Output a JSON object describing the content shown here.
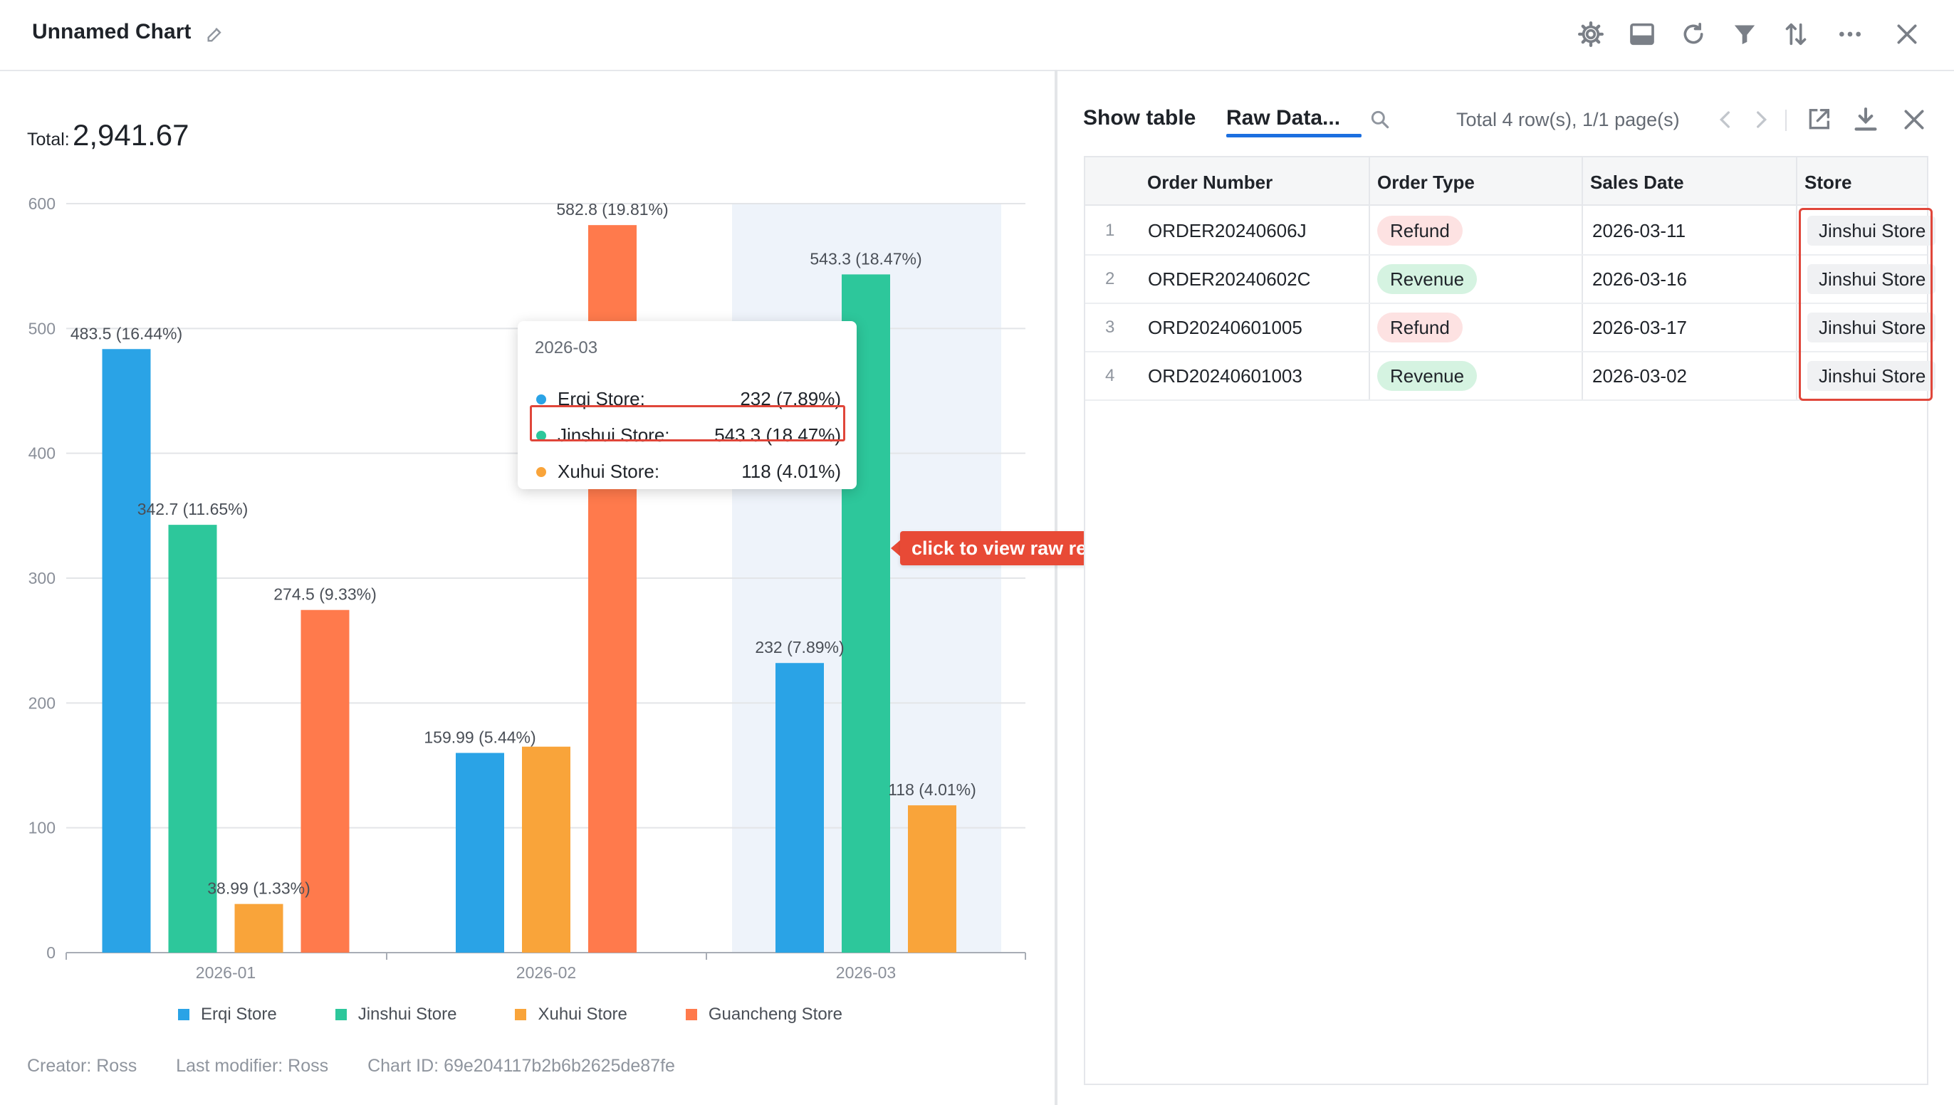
{
  "header": {
    "title": "Unnamed Chart",
    "icons": [
      "settings-icon",
      "display-icon",
      "refresh-icon",
      "filter-icon",
      "sort-icon",
      "more-icon",
      "close-icon"
    ]
  },
  "summary": {
    "total_label": "Total:",
    "total_value": "2,941.67"
  },
  "colors": {
    "erqi": "#2aa3e6",
    "jinshui": "#2dc79b",
    "xuhui": "#f9a43a",
    "guancheng": "#ff7a4c",
    "highlight_band": "#eef3fa",
    "annotation_red": "#e0463a"
  },
  "chart_data": {
    "type": "bar",
    "categories": [
      "2026-01",
      "2026-02",
      "2026-03"
    ],
    "series": [
      {
        "name": "Erqi Store",
        "values": [
          483.5,
          159.99,
          232
        ],
        "labels": [
          "483.5 (16.44%)",
          "159.99 (5.44%)",
          "232 (7.89%)"
        ]
      },
      {
        "name": "Jinshui Store",
        "values": [
          342.7,
          null,
          543.3
        ],
        "labels": [
          "342.7 (11.65%)",
          null,
          "543.3 (18.47%)"
        ]
      },
      {
        "name": "Xuhui Store",
        "values": [
          38.99,
          165,
          118
        ],
        "labels": [
          "38.99 (1.33%)",
          null,
          "118 (4.01%)"
        ]
      },
      {
        "name": "Guancheng Store",
        "values": [
          274.5,
          582.8,
          null
        ],
        "labels": [
          "274.5 (9.33%)",
          "582.8 (19.81%)",
          null
        ]
      }
    ],
    "yticks": [
      "0",
      "100",
      "200",
      "300",
      "400",
      "500",
      "600"
    ],
    "ylim": [
      0,
      600
    ],
    "grid": true,
    "legend_position": "bottom",
    "highlighted_category": "2026-03"
  },
  "tooltip": {
    "title": "2026-03",
    "rows": [
      {
        "name": "Erqi Store:",
        "value": "232 (7.89%)"
      },
      {
        "name": "Jinshui Store:",
        "value": "543.3 (18.47%)"
      },
      {
        "name": "Xuhui Store:",
        "value": "118 (4.01%)"
      }
    ]
  },
  "callout": "click to view raw records",
  "footer": {
    "creator": "Creator: Ross",
    "modifier": "Last modifier: Ross",
    "chart_id": "Chart ID: 69e204117b2b6b2625de87fe"
  },
  "right_panel": {
    "tabs": [
      "Show table",
      "Raw Data..."
    ],
    "pagination": "Total 4 row(s), 1/1 page(s)",
    "columns": [
      "Order Number",
      "Order Type",
      "Sales Date",
      "Store"
    ],
    "rows": [
      {
        "index": "1",
        "order": "ORDER20240606J",
        "type": "Refund",
        "date": "2026-03-11",
        "store": "Jinshui Store"
      },
      {
        "index": "2",
        "order": "ORDER20240602C",
        "type": "Revenue",
        "date": "2026-03-16",
        "store": "Jinshui Store"
      },
      {
        "index": "3",
        "order": "ORD20240601005",
        "type": "Refund",
        "date": "2026-03-17",
        "store": "Jinshui Store"
      },
      {
        "index": "4",
        "order": "ORD20240601003",
        "type": "Revenue",
        "date": "2026-03-02",
        "store": "Jinshui Store"
      }
    ],
    "type_colors": {
      "Refund": "#fde2e2",
      "Revenue": "#d5f3e1"
    }
  }
}
